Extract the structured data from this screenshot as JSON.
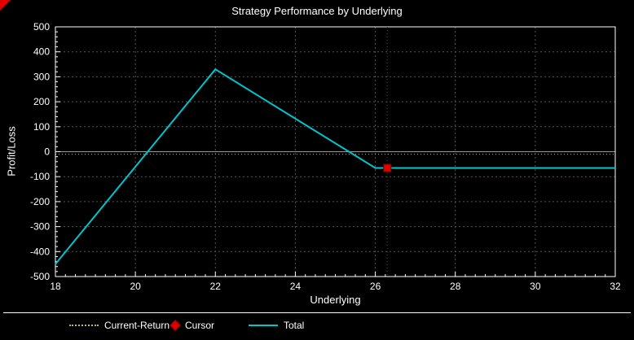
{
  "title": "Strategy Performance by Underlying",
  "colors": {
    "background": "#000000",
    "text": "#ffffff",
    "grid": "#555555",
    "zero_line": "#9a9a9a",
    "axis_frame": "#ffffff",
    "total_line": "#00c4cc",
    "current_return_line": "#bdb76b",
    "cursor": "#e00000",
    "cursor_border": "#7a0000",
    "corner_marker": "#e00000"
  },
  "chart_data": {
    "type": "line",
    "title": "Strategy Performance by Underlying",
    "xlabel": "Underlying",
    "ylabel": "Profit/Loss",
    "xlim": [
      18,
      32
    ],
    "ylim": [
      -500,
      500
    ],
    "x_ticks": [
      18,
      20,
      22,
      24,
      26,
      28,
      30,
      32
    ],
    "y_ticks": [
      -500,
      -400,
      -300,
      -200,
      -100,
      0,
      100,
      200,
      300,
      400,
      500
    ],
    "x_minor_step": 0.25,
    "y_minor_step": 20,
    "grid": true,
    "legend_position": "bottom",
    "series": [
      {
        "name": "Total",
        "color": "#00c4cc",
        "points": [
          [
            18,
            -450
          ],
          [
            22,
            330
          ],
          [
            26,
            -65
          ],
          [
            32,
            -65
          ]
        ]
      }
    ],
    "reference_lines": [
      {
        "name": "Current-Return",
        "orientation": "horizontal",
        "y": -10,
        "style": "dotted",
        "color": "#bdb76b"
      }
    ],
    "cursor": {
      "name": "Cursor",
      "x": 26.3,
      "y": -65,
      "color": "#e00000",
      "style": "vertical-dotted"
    }
  },
  "legend": {
    "items": [
      {
        "label": "Current-Return",
        "swatch": "dotted-line",
        "color": "#bdb76b"
      },
      {
        "label": "Cursor",
        "swatch": "diamond",
        "color": "#e00000"
      },
      {
        "label": "Total",
        "swatch": "line",
        "color": "#00c4cc"
      }
    ]
  }
}
